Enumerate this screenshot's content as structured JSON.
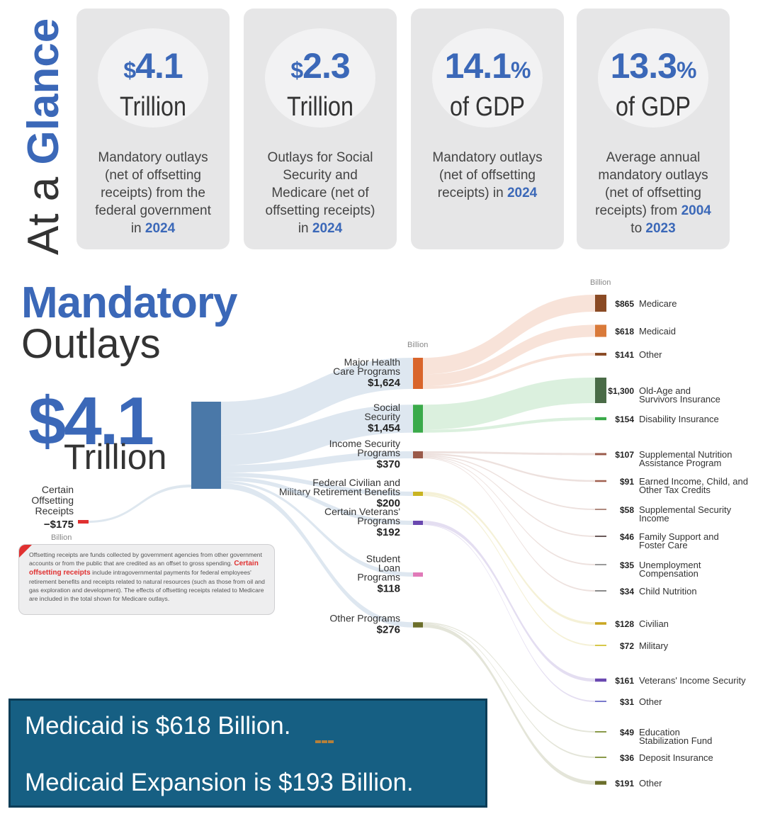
{
  "at_a_glance": {
    "title_part1": "At a ",
    "title_part2": "Glance",
    "cards": [
      {
        "num": "$4.1",
        "currency": "$",
        "value": "4.1",
        "suffix": "",
        "unit": "Trillion",
        "desc_lines": [
          [
            "Mandatory outlays"
          ],
          [
            "(net of offsetting"
          ],
          [
            "receipts) from the"
          ],
          [
            "federal government"
          ],
          [
            "in ",
            "2024"
          ]
        ]
      },
      {
        "currency": "$",
        "value": "2.3",
        "suffix": "",
        "unit": "Trillion",
        "desc_lines": [
          [
            "Outlays for Social"
          ],
          [
            "Security and"
          ],
          [
            "Medicare (net of"
          ],
          [
            "offsetting receipts)"
          ],
          [
            "in ",
            "2024"
          ]
        ]
      },
      {
        "currency": "",
        "value": "14.1",
        "suffix": "%",
        "unit": "of GDP",
        "desc_lines": [
          [
            "Mandatory outlays"
          ],
          [
            "(net of offsetting"
          ],
          [
            "receipts) in ",
            "2024"
          ]
        ]
      },
      {
        "currency": "",
        "value": "13.3",
        "suffix": "%",
        "unit": "of GDP",
        "desc_lines": [
          [
            "Average annual"
          ],
          [
            "mandatory outlays"
          ],
          [
            "(net of offsetting"
          ],
          [
            "receipts) from ",
            "2004"
          ],
          [
            "to ",
            "2023"
          ]
        ]
      }
    ]
  },
  "headline": {
    "title1": "Mandatory",
    "title2": "Outlays",
    "total": "$4.1",
    "total_unit": "Trillion"
  },
  "note": {
    "before": "Offsetting receipts are funds collected by government agencies from other government accounts or from the public that are credited as an offset to gross spending. ",
    "highlight": "Certain offsetting receipts",
    "after": " include intragovernmental payments for federal employees' retirement benefits and receipts related to natural resources (such as those from oil and gas exploration and development). The effects of offsetting receipts related to Medicare are included in the total shown for Medicare outlays."
  },
  "banner": {
    "line1": "Medicaid is $618 Billion.",
    "line2": "Medicaid Expansion is $193 Billion."
  },
  "chart_data": {
    "type": "sankey",
    "units": "Billion",
    "total_label": "$4.1 Trillion",
    "offsets": {
      "name_lines": [
        "Certain",
        "Offsetting",
        "Receipts"
      ],
      "value": -175,
      "value_label": "−$175",
      "unit_label": "Billion",
      "color": "#e03030"
    },
    "middle_unit_label": "Billion",
    "right_unit_label": "Billion",
    "categories": [
      {
        "name_lines": [
          "Major Health",
          "Care Programs"
        ],
        "value": 1624,
        "value_label": "$1,624",
        "color": "#d9652b",
        "children": [
          {
            "name_lines": [
              "Medicare"
            ],
            "value": 865,
            "value_label": "$865",
            "color": "#8a4a24"
          },
          {
            "name_lines": [
              "Medicaid"
            ],
            "value": 618,
            "value_label": "$618",
            "color": "#d97a3a"
          },
          {
            "name_lines": [
              "Other"
            ],
            "value": 141,
            "value_label": "$141",
            "color": "#8a4a24"
          }
        ]
      },
      {
        "name_lines": [
          "Social",
          "Security"
        ],
        "value": 1454,
        "value_label": "$1,454",
        "color": "#3aaa4a",
        "children": [
          {
            "name_lines": [
              "Old-Age and",
              "Survivors Insurance"
            ],
            "value": 1300,
            "value_label": "$1,300",
            "color": "#4a6b47"
          },
          {
            "name_lines": [
              "Disability Insurance"
            ],
            "value": 154,
            "value_label": "$154",
            "color": "#3aaa4a"
          }
        ]
      },
      {
        "name_lines": [
          "Income Security",
          "Programs"
        ],
        "value": 370,
        "value_label": "$370",
        "color": "#9a5a4a",
        "children": [
          {
            "name_lines": [
              "Supplemental Nutrition",
              "Assistance Program"
            ],
            "value": 107,
            "value_label": "$107",
            "color": "#9a5a4a"
          },
          {
            "name_lines": [
              "Earned Income, Child, and",
              "Other Tax Credits"
            ],
            "value": 91,
            "value_label": "$91",
            "color": "#a06050"
          },
          {
            "name_lines": [
              "Supplemental Security",
              "Income"
            ],
            "value": 58,
            "value_label": "$58",
            "color": "#b08a80"
          },
          {
            "name_lines": [
              "Family Support and",
              "Foster Care"
            ],
            "value": 46,
            "value_label": "$46",
            "color": "#6a5a5a"
          },
          {
            "name_lines": [
              "Unemployment",
              "Compensation"
            ],
            "value": 35,
            "value_label": "$35",
            "color": "#9a9a9a"
          },
          {
            "name_lines": [
              "Child Nutrition"
            ],
            "value": 34,
            "value_label": "$34",
            "color": "#8a8a8a"
          }
        ]
      },
      {
        "name_lines": [
          "Federal Civilian and",
          "Military Retirement Benefits"
        ],
        "value": 200,
        "value_label": "$200",
        "color": "#c9b422",
        "children": [
          {
            "name_lines": [
              "Civilian"
            ],
            "value": 128,
            "value_label": "$128",
            "color": "#c9a622"
          },
          {
            "name_lines": [
              "Military"
            ],
            "value": 72,
            "value_label": "$72",
            "color": "#d6c84a"
          }
        ]
      },
      {
        "name_lines": [
          "Certain Veterans'",
          "Programs"
        ],
        "value": 192,
        "value_label": "$192",
        "color": "#6a48b0",
        "children": [
          {
            "name_lines": [
              "Veterans' Income Security"
            ],
            "value": 161,
            "value_label": "$161",
            "color": "#6a48b0"
          },
          {
            "name_lines": [
              "Other"
            ],
            "value": 31,
            "value_label": "$31",
            "color": "#7a7acc"
          }
        ]
      },
      {
        "name_lines": [
          "Student",
          "Loan",
          "Programs"
        ],
        "value": 118,
        "value_label": "$118",
        "color": "#e07ab8",
        "children": []
      },
      {
        "name_lines": [
          "Other Programs"
        ],
        "value": 276,
        "value_label": "$276",
        "color": "#6b6e2a",
        "children": [
          {
            "name_lines": [
              "Education",
              "Stabilization Fund"
            ],
            "value": 49,
            "value_label": "$49",
            "color": "#8a9a4a"
          },
          {
            "name_lines": [
              "Deposit Insurance"
            ],
            "value": 36,
            "value_label": "$36",
            "color": "#8a9a4a"
          },
          {
            "name_lines": [
              "Other"
            ],
            "value": 191,
            "value_label": "$191",
            "color": "#6b6e2a"
          }
        ]
      }
    ]
  }
}
